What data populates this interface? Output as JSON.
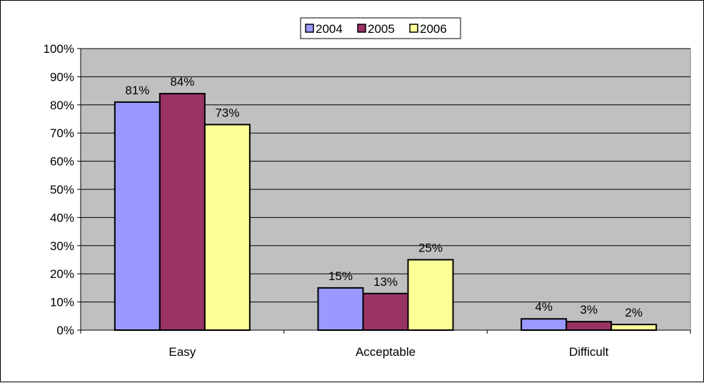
{
  "chart_data": {
    "type": "bar",
    "categories": [
      "Easy",
      "Acceptable",
      "Difficult"
    ],
    "series": [
      {
        "name": "2004",
        "values": [
          81,
          15,
          4
        ],
        "color": "#9999FF"
      },
      {
        "name": "2005",
        "values": [
          84,
          13,
          3
        ],
        "color": "#993366"
      },
      {
        "name": "2006",
        "values": [
          73,
          25,
          2
        ],
        "color": "#FFFF99"
      }
    ],
    "data_labels": [
      [
        "81%",
        "15%",
        "4%"
      ],
      [
        "84%",
        "13%",
        "3%"
      ],
      [
        "73%",
        "25%",
        "2%"
      ]
    ],
    "ylim": [
      0,
      100
    ],
    "yticks": [
      0,
      10,
      20,
      30,
      40,
      50,
      60,
      70,
      80,
      90,
      100
    ],
    "ytick_labels": [
      "0%",
      "10%",
      "20%",
      "30%",
      "40%",
      "50%",
      "60%",
      "70%",
      "80%",
      "90%",
      "100%"
    ],
    "grid": true,
    "plot_background": "#C0C0C0",
    "legend_position": "top-center",
    "title": "",
    "xlabel": "",
    "ylabel": ""
  }
}
